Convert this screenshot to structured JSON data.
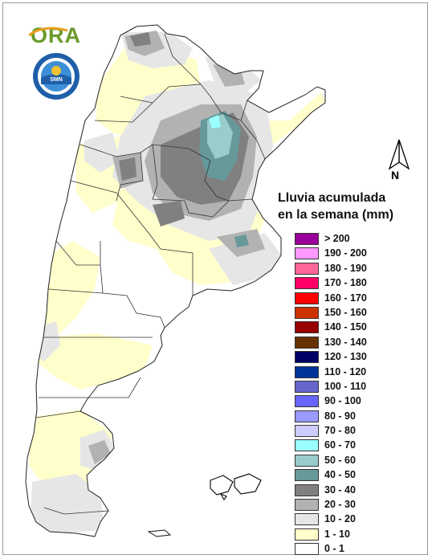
{
  "logo": {
    "text": "ORA"
  },
  "seal": {
    "ring_text": "SERVICIO METEOROLOGICO NACIONAL",
    "bottom_text": "ARGENTINA",
    "center_text": "SMN"
  },
  "north_arrow": {
    "label": "N"
  },
  "legend": {
    "title_line1": "Lluvia acumulada",
    "title_line2": "en la semana (mm)",
    "items": [
      {
        "label": "> 200",
        "color": "#990099"
      },
      {
        "label": "190 - 200",
        "color": "#ff99ff"
      },
      {
        "label": "180 - 190",
        "color": "#ff6699"
      },
      {
        "label": "170 - 180",
        "color": "#ff0066"
      },
      {
        "label": "160 - 170",
        "color": "#ff0000"
      },
      {
        "label": "150 - 160",
        "color": "#cc3300"
      },
      {
        "label": "140 - 150",
        "color": "#990000"
      },
      {
        "label": "130 - 140",
        "color": "#663300"
      },
      {
        "label": "120 - 130",
        "color": "#000066"
      },
      {
        "label": "110 - 120",
        "color": "#003399"
      },
      {
        "label": "100 - 110",
        "color": "#6666cc"
      },
      {
        "label": "90 - 100",
        "color": "#6666ff"
      },
      {
        "label": "80 - 90",
        "color": "#9999ff"
      },
      {
        "label": "70 - 80",
        "color": "#ccccff"
      },
      {
        "label": "60 - 70",
        "color": "#99ffff"
      },
      {
        "label": "50 - 60",
        "color": "#99cccc"
      },
      {
        "label": "40 - 50",
        "color": "#669999"
      },
      {
        "label": "30 - 40",
        "color": "#808080"
      },
      {
        "label": "20 - 30",
        "color": "#b2b2b2"
      },
      {
        "label": "10 - 20",
        "color": "#e6e6e6"
      },
      {
        "label": "1 - 10",
        "color": "#ffffcc"
      },
      {
        "label": "0 - 1",
        "color": "#ffffff"
      }
    ]
  }
}
